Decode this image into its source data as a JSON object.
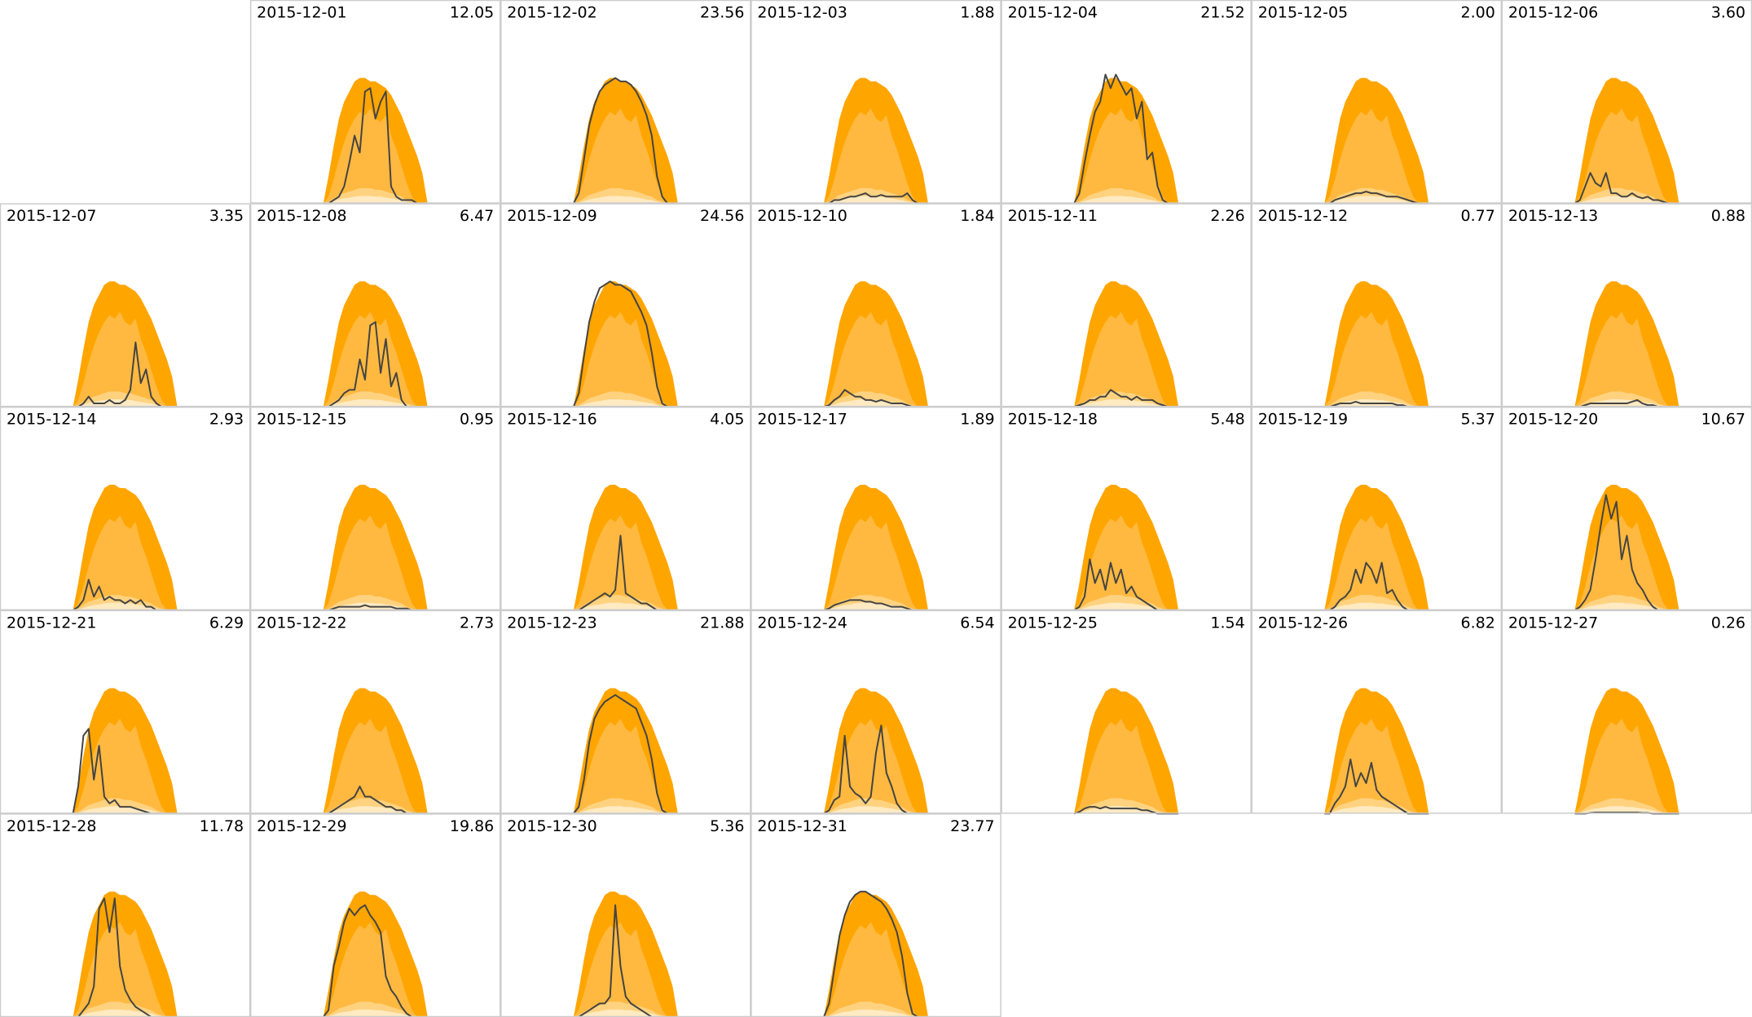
{
  "chart_data": {
    "type": "area",
    "xlim": [
      0,
      24
    ],
    "ylim": [
      0,
      6
    ],
    "x": [
      7,
      7.5,
      8,
      8.5,
      9,
      9.5,
      10,
      10.5,
      11,
      11.5,
      12,
      12.5,
      13,
      13.5,
      14,
      14.5,
      15,
      15.5,
      16,
      16.5,
      17
    ],
    "line_color": "#444444",
    "bands": [
      {
        "color": "#ffa500",
        "values": [
          0,
          0.8,
          1.7,
          2.5,
          3.0,
          3.3,
          3.6,
          3.7,
          3.7,
          3.6,
          3.6,
          3.5,
          3.4,
          3.2,
          2.9,
          2.6,
          2.2,
          1.8,
          1.4,
          0.9,
          0
        ]
      },
      {
        "color": "#ffb940",
        "values": [
          0,
          0.2,
          0.7,
          1.3,
          1.8,
          2.2,
          2.5,
          2.7,
          2.6,
          2.8,
          2.5,
          2.4,
          2.6,
          2.0,
          1.6,
          1.1,
          0.6,
          0.2,
          0,
          0,
          0
        ]
      },
      {
        "color": "#ffd27f",
        "values": [
          0,
          0.05,
          0.15,
          0.25,
          0.3,
          0.35,
          0.4,
          0.45,
          0.45,
          0.45,
          0.4,
          0.4,
          0.35,
          0.3,
          0.25,
          0.2,
          0.1,
          0.05,
          0,
          0,
          0
        ]
      },
      {
        "color": "#ffeac2",
        "values": [
          0,
          0.02,
          0.07,
          0.12,
          0.15,
          0.17,
          0.2,
          0.22,
          0.22,
          0.22,
          0.2,
          0.2,
          0.17,
          0.15,
          0.12,
          0.1,
          0.05,
          0.02,
          0,
          0,
          0
        ]
      }
    ],
    "panels": [
      {
        "title": "2015-12-01",
        "total": 12.05,
        "values": [
          0,
          0,
          0.1,
          0.2,
          0.5,
          1.2,
          2.0,
          1.5,
          3.3,
          3.4,
          2.5,
          3.0,
          3.3,
          0.5,
          0.2,
          0.1,
          0.1,
          0.1,
          0,
          0,
          0
        ]
      },
      {
        "title": "2015-12-02",
        "total": 23.56,
        "values": [
          0,
          0.3,
          1.3,
          2.3,
          2.9,
          3.3,
          3.5,
          3.6,
          3.7,
          3.6,
          3.6,
          3.5,
          3.3,
          3.0,
          2.6,
          2.0,
          0.8,
          0.2,
          0,
          0,
          0
        ]
      },
      {
        "title": "2015-12-03",
        "total": 1.88,
        "values": [
          0,
          0,
          0.1,
          0.1,
          0.15,
          0.2,
          0.2,
          0.25,
          0.3,
          0.2,
          0.2,
          0.25,
          0.2,
          0.2,
          0.2,
          0.2,
          0.3,
          0.1,
          0,
          0,
          0
        ]
      },
      {
        "title": "2015-12-04",
        "total": 21.52,
        "values": [
          0,
          0.3,
          1.2,
          2.0,
          2.7,
          3.0,
          3.8,
          3.4,
          3.8,
          3.5,
          3.2,
          3.4,
          2.5,
          3.0,
          1.3,
          1.5,
          0.5,
          0.1,
          0,
          0,
          0
        ]
      },
      {
        "title": "2015-12-05",
        "total": 2,
        "total_label": "2.00",
        "values": [
          0,
          0,
          0.1,
          0.15,
          0.2,
          0.25,
          0.3,
          0.3,
          0.35,
          0.3,
          0.3,
          0.25,
          0.2,
          0.2,
          0.2,
          0.15,
          0.1,
          0.05,
          0,
          0,
          0
        ]
      },
      {
        "title": "2015-12-06",
        "total": 3.6,
        "total_label": "3.60",
        "values": [
          0,
          0.1,
          0.5,
          0.9,
          0.6,
          0.5,
          0.9,
          0.3,
          0.3,
          0.2,
          0.2,
          0.3,
          0.2,
          0.15,
          0.2,
          0.1,
          0.1,
          0.05,
          0,
          0,
          0
        ]
      },
      {
        "title": "2015-12-07",
        "total": 3.35,
        "values": [
          0,
          0,
          0.1,
          0.3,
          0.1,
          0.1,
          0.1,
          0.2,
          0.1,
          0.1,
          0.2,
          0.5,
          1.9,
          0.7,
          1.1,
          0.3,
          0.1,
          0,
          0,
          0,
          0
        ]
      },
      {
        "title": "2015-12-08",
        "total": 6.47,
        "values": [
          0,
          0,
          0.1,
          0.2,
          0.4,
          0.5,
          0.5,
          1.4,
          0.8,
          2.4,
          2.5,
          1.0,
          2.0,
          0.6,
          1.0,
          0.2,
          0,
          0,
          0,
          0,
          0
        ]
      },
      {
        "title": "2015-12-09",
        "total": 24.56,
        "values": [
          0,
          0.4,
          1.5,
          2.5,
          3.1,
          3.5,
          3.6,
          3.7,
          3.6,
          3.6,
          3.5,
          3.4,
          3.1,
          2.8,
          2.4,
          1.6,
          0.6,
          0.1,
          0,
          0,
          0
        ]
      },
      {
        "title": "2015-12-10",
        "total": 1.84,
        "values": [
          0,
          0.05,
          0.2,
          0.3,
          0.5,
          0.4,
          0.3,
          0.3,
          0.2,
          0.2,
          0.15,
          0.2,
          0.15,
          0.1,
          0.1,
          0.1,
          0.05,
          0,
          0,
          0,
          0
        ]
      },
      {
        "title": "2015-12-11",
        "total": 2.26,
        "values": [
          0,
          0.05,
          0.1,
          0.2,
          0.2,
          0.3,
          0.3,
          0.5,
          0.4,
          0.3,
          0.3,
          0.2,
          0.3,
          0.2,
          0.2,
          0.2,
          0.1,
          0.05,
          0,
          0,
          0
        ]
      },
      {
        "title": "2015-12-12",
        "total": 0.77,
        "values": [
          0,
          0,
          0.05,
          0.1,
          0.1,
          0.1,
          0.15,
          0.1,
          0.1,
          0.1,
          0.1,
          0.1,
          0.1,
          0.1,
          0.05,
          0.05,
          0,
          0,
          0,
          0,
          0
        ]
      },
      {
        "title": "2015-12-13",
        "total": 0.88,
        "values": [
          0,
          0,
          0.05,
          0.1,
          0.1,
          0.1,
          0.1,
          0.1,
          0.1,
          0.1,
          0.1,
          0.15,
          0.2,
          0.1,
          0.05,
          0.05,
          0,
          0,
          0,
          0,
          0
        ]
      },
      {
        "title": "2015-12-14",
        "total": 2.93,
        "values": [
          0,
          0.1,
          0.3,
          0.9,
          0.4,
          0.7,
          0.3,
          0.4,
          0.3,
          0.3,
          0.2,
          0.3,
          0.2,
          0.3,
          0.1,
          0.1,
          0,
          0,
          0,
          0,
          0
        ]
      },
      {
        "title": "2015-12-15",
        "total": 0.95,
        "values": [
          0,
          0,
          0.05,
          0.1,
          0.1,
          0.1,
          0.1,
          0.1,
          0.15,
          0.1,
          0.1,
          0.1,
          0.1,
          0.1,
          0.05,
          0.05,
          0.05,
          0,
          0,
          0,
          0
        ]
      },
      {
        "title": "2015-12-16",
        "total": 4.05,
        "values": [
          0,
          0,
          0.1,
          0.2,
          0.3,
          0.4,
          0.5,
          0.4,
          0.6,
          2.2,
          0.5,
          0.4,
          0.3,
          0.2,
          0.2,
          0.1,
          0,
          0,
          0,
          0,
          0
        ]
      },
      {
        "title": "2015-12-17",
        "total": 1.89,
        "values": [
          0,
          0.05,
          0.15,
          0.2,
          0.25,
          0.3,
          0.3,
          0.3,
          0.25,
          0.25,
          0.2,
          0.2,
          0.15,
          0.1,
          0.1,
          0.1,
          0.05,
          0,
          0,
          0,
          0
        ]
      },
      {
        "title": "2015-12-18",
        "total": 5.48,
        "values": [
          0,
          0.1,
          0.4,
          1.5,
          0.8,
          1.2,
          0.6,
          1.4,
          0.8,
          1.2,
          0.5,
          0.7,
          0.4,
          0.3,
          0.2,
          0.1,
          0,
          0,
          0,
          0,
          0
        ]
      },
      {
        "title": "2015-12-19",
        "total": 5.37,
        "values": [
          0,
          0,
          0.1,
          0.3,
          0.4,
          0.6,
          1.2,
          0.8,
          1.4,
          1.2,
          0.8,
          1.4,
          0.5,
          0.6,
          0.3,
          0.1,
          0,
          0,
          0,
          0,
          0
        ]
      },
      {
        "title": "2015-12-20",
        "total": 10.67,
        "values": [
          0,
          0.1,
          0.3,
          0.6,
          1.5,
          2.5,
          3.4,
          2.7,
          3.2,
          1.5,
          2.2,
          1.2,
          0.8,
          0.6,
          0.3,
          0.1,
          0,
          0,
          0,
          0,
          0
        ]
      },
      {
        "title": "2015-12-21",
        "total": 6.29,
        "values": [
          0,
          0.8,
          2.3,
          2.5,
          1.0,
          2.0,
          0.5,
          0.3,
          0.4,
          0.2,
          0.2,
          0.2,
          0.15,
          0.1,
          0.05,
          0,
          0,
          0,
          0,
          0,
          0
        ]
      },
      {
        "title": "2015-12-22",
        "total": 2.73,
        "values": [
          0,
          0,
          0.1,
          0.2,
          0.3,
          0.4,
          0.5,
          0.8,
          0.5,
          0.5,
          0.4,
          0.3,
          0.2,
          0.2,
          0.1,
          0.1,
          0,
          0,
          0,
          0,
          0
        ]
      },
      {
        "title": "2015-12-23",
        "total": 21.88,
        "values": [
          0,
          0.2,
          1.0,
          2.1,
          2.8,
          3.1,
          3.3,
          3.4,
          3.5,
          3.4,
          3.3,
          3.2,
          3.1,
          2.7,
          2.3,
          1.6,
          0.6,
          0.1,
          0,
          0,
          0
        ]
      },
      {
        "title": "2015-12-24",
        "total": 6.54,
        "values": [
          0,
          0.1,
          0.4,
          0.5,
          2.3,
          0.8,
          0.6,
          0.5,
          0.3,
          0.5,
          1.8,
          2.6,
          1.2,
          0.8,
          0.3,
          0.1,
          0,
          0,
          0,
          0,
          0
        ]
      },
      {
        "title": "2015-12-25",
        "total": 1.54,
        "values": [
          0,
          0.05,
          0.15,
          0.2,
          0.2,
          0.15,
          0.2,
          0.15,
          0.15,
          0.15,
          0.15,
          0.15,
          0.15,
          0.1,
          0.1,
          0.05,
          0,
          0,
          0,
          0,
          0
        ]
      },
      {
        "title": "2015-12-26",
        "total": 6.82,
        "values": [
          0,
          0,
          0.3,
          0.5,
          0.8,
          1.6,
          0.8,
          1.2,
          0.9,
          1.5,
          0.7,
          0.5,
          0.4,
          0.3,
          0.2,
          0.1,
          0,
          0,
          0,
          0,
          0
        ]
      },
      {
        "title": "2015-12-27",
        "total": 0.26,
        "values": [
          0,
          0,
          0,
          0.02,
          0.03,
          0.03,
          0.03,
          0.03,
          0.03,
          0.03,
          0.03,
          0.03,
          0.03,
          0.02,
          0.02,
          0,
          0,
          0,
          0,
          0,
          0
        ]
      },
      {
        "title": "2015-12-28",
        "total": 11.78,
        "values": [
          0,
          0,
          0.2,
          0.4,
          0.9,
          3.2,
          3.5,
          2.5,
          3.5,
          1.5,
          0.8,
          0.5,
          0.3,
          0.2,
          0.1,
          0,
          0,
          0,
          0,
          0,
          0
        ]
      },
      {
        "title": "2015-12-29",
        "total": 19.86,
        "values": [
          0,
          0.2,
          1.5,
          2.1,
          2.8,
          3.2,
          3.0,
          3.2,
          3.3,
          3.0,
          2.8,
          2.5,
          1.2,
          0.8,
          0.6,
          0.3,
          0.1,
          0,
          0,
          0,
          0
        ]
      },
      {
        "title": "2015-12-30",
        "total": 5.36,
        "values": [
          0,
          0,
          0.1,
          0.2,
          0.3,
          0.4,
          0.4,
          0.6,
          3.3,
          1.5,
          0.6,
          0.4,
          0.3,
          0.2,
          0.1,
          0,
          0,
          0,
          0,
          0,
          0
        ]
      },
      {
        "title": "2015-12-31",
        "total": 23.77,
        "values": [
          0,
          0.4,
          1.4,
          2.4,
          3.0,
          3.4,
          3.6,
          3.7,
          3.7,
          3.6,
          3.5,
          3.4,
          3.2,
          2.9,
          2.5,
          1.8,
          0.7,
          0.1,
          0,
          0,
          0
        ]
      }
    ]
  }
}
